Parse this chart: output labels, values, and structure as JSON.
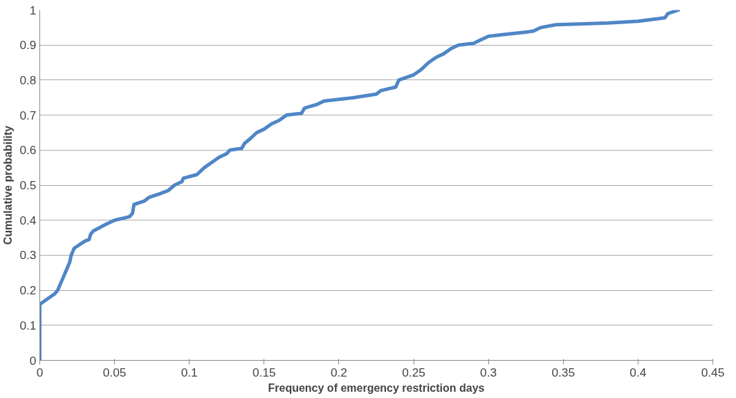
{
  "chart_data": {
    "type": "line",
    "xlabel": "Frequency of emergency restriction days",
    "ylabel": "Cumulative probability",
    "xlim": [
      0,
      0.45
    ],
    "ylim": [
      0,
      1
    ],
    "xticks": [
      0,
      0.05,
      0.1,
      0.15,
      0.2,
      0.25,
      0.3,
      0.35,
      0.4,
      0.45
    ],
    "yticks": [
      0,
      0.1,
      0.2,
      0.3,
      0.4,
      0.5,
      0.6,
      0.7,
      0.8,
      0.9,
      1
    ],
    "grid": "y",
    "marker": "none",
    "line_style": "solid",
    "series": [
      {
        "color": "#4f86c6",
        "x": [
          0,
          0,
          0.005,
          0.01,
          0.012,
          0.015,
          0.018,
          0.02,
          0.021,
          0.023,
          0.03,
          0.033,
          0.034,
          0.036,
          0.045,
          0.05,
          0.06,
          0.062,
          0.063,
          0.07,
          0.073,
          0.08,
          0.086,
          0.09,
          0.095,
          0.096,
          0.105,
          0.11,
          0.115,
          0.12,
          0.125,
          0.127,
          0.135,
          0.137,
          0.14,
          0.145,
          0.15,
          0.155,
          0.16,
          0.165,
          0.175,
          0.177,
          0.185,
          0.19,
          0.2,
          0.21,
          0.225,
          0.228,
          0.238,
          0.24,
          0.25,
          0.255,
          0.26,
          0.265,
          0.27,
          0.275,
          0.28,
          0.29,
          0.295,
          0.3,
          0.31,
          0.325,
          0.33,
          0.335,
          0.345,
          0.36,
          0.38,
          0.4,
          0.418,
          0.42,
          0.427
        ],
        "values": [
          0,
          0.16,
          0.175,
          0.19,
          0.2,
          0.23,
          0.26,
          0.28,
          0.3,
          0.32,
          0.34,
          0.345,
          0.36,
          0.37,
          0.39,
          0.4,
          0.41,
          0.42,
          0.445,
          0.455,
          0.465,
          0.475,
          0.485,
          0.5,
          0.51,
          0.52,
          0.53,
          0.55,
          0.565,
          0.58,
          0.59,
          0.6,
          0.605,
          0.62,
          0.63,
          0.65,
          0.66,
          0.675,
          0.685,
          0.7,
          0.705,
          0.72,
          0.73,
          0.74,
          0.745,
          0.75,
          0.76,
          0.77,
          0.78,
          0.8,
          0.815,
          0.83,
          0.85,
          0.865,
          0.875,
          0.89,
          0.9,
          0.905,
          0.915,
          0.925,
          0.93,
          0.937,
          0.94,
          0.95,
          0.958,
          0.96,
          0.963,
          0.968,
          0.978,
          0.99,
          1.0
        ]
      }
    ]
  }
}
